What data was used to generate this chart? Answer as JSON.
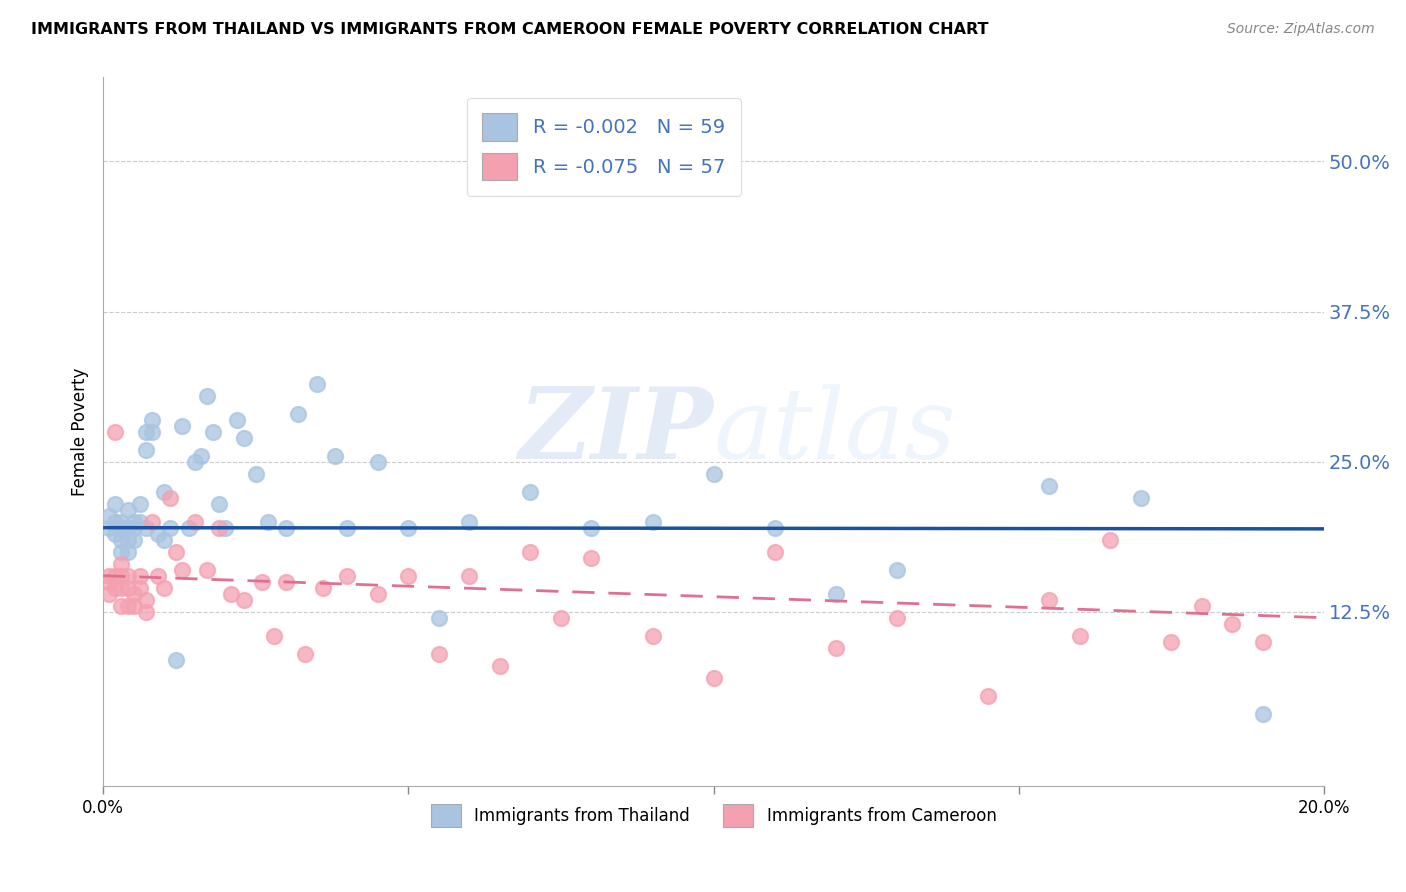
{
  "title": "IMMIGRANTS FROM THAILAND VS IMMIGRANTS FROM CAMEROON FEMALE POVERTY CORRELATION CHART",
  "source": "Source: ZipAtlas.com",
  "ylabel": "Female Poverty",
  "y_ticks": [
    0.125,
    0.25,
    0.375,
    0.5
  ],
  "y_tick_labels": [
    "12.5%",
    "25.0%",
    "37.5%",
    "50.0%"
  ],
  "x_lim": [
    0.0,
    0.2
  ],
  "y_lim": [
    -0.02,
    0.57
  ],
  "thailand_color": "#a8c4e0",
  "cameroon_color": "#f4a0b0",
  "thailand_line_color": "#1a52a0",
  "cameroon_line_color": "#e07090",
  "legend_label_thailand": "R = -0.002   N = 59",
  "legend_label_cameroon": "R = -0.075   N = 57",
  "watermark_zip": "ZIP",
  "watermark_atlas": "atlas",
  "thailand_line_y0": 0.195,
  "thailand_line_y1": 0.194,
  "cameroon_line_y0": 0.155,
  "cameroon_line_y1": 0.12,
  "thailand_x": [
    0.001,
    0.001,
    0.002,
    0.002,
    0.002,
    0.003,
    0.003,
    0.003,
    0.003,
    0.004,
    0.004,
    0.004,
    0.004,
    0.005,
    0.005,
    0.005,
    0.006,
    0.006,
    0.007,
    0.007,
    0.007,
    0.008,
    0.008,
    0.009,
    0.01,
    0.01,
    0.011,
    0.012,
    0.013,
    0.014,
    0.015,
    0.016,
    0.017,
    0.018,
    0.019,
    0.02,
    0.022,
    0.023,
    0.025,
    0.027,
    0.03,
    0.032,
    0.035,
    0.038,
    0.04,
    0.045,
    0.05,
    0.055,
    0.06,
    0.07,
    0.08,
    0.09,
    0.1,
    0.11,
    0.12,
    0.13,
    0.155,
    0.17,
    0.19
  ],
  "thailand_y": [
    0.195,
    0.205,
    0.19,
    0.2,
    0.215,
    0.2,
    0.195,
    0.185,
    0.175,
    0.21,
    0.195,
    0.185,
    0.175,
    0.2,
    0.195,
    0.185,
    0.215,
    0.2,
    0.275,
    0.26,
    0.195,
    0.285,
    0.275,
    0.19,
    0.225,
    0.185,
    0.195,
    0.085,
    0.28,
    0.195,
    0.25,
    0.255,
    0.305,
    0.275,
    0.215,
    0.195,
    0.285,
    0.27,
    0.24,
    0.2,
    0.195,
    0.29,
    0.315,
    0.255,
    0.195,
    0.25,
    0.195,
    0.12,
    0.2,
    0.225,
    0.195,
    0.2,
    0.24,
    0.195,
    0.14,
    0.16,
    0.23,
    0.22,
    0.04
  ],
  "cameroon_x": [
    0.001,
    0.001,
    0.001,
    0.002,
    0.002,
    0.002,
    0.003,
    0.003,
    0.003,
    0.003,
    0.004,
    0.004,
    0.004,
    0.005,
    0.005,
    0.006,
    0.006,
    0.007,
    0.007,
    0.008,
    0.009,
    0.01,
    0.011,
    0.012,
    0.013,
    0.015,
    0.017,
    0.019,
    0.021,
    0.023,
    0.026,
    0.028,
    0.03,
    0.033,
    0.036,
    0.04,
    0.045,
    0.05,
    0.055,
    0.06,
    0.065,
    0.07,
    0.075,
    0.08,
    0.09,
    0.1,
    0.11,
    0.12,
    0.13,
    0.145,
    0.155,
    0.16,
    0.165,
    0.175,
    0.18,
    0.185,
    0.19
  ],
  "cameroon_y": [
    0.155,
    0.15,
    0.14,
    0.275,
    0.155,
    0.145,
    0.165,
    0.155,
    0.145,
    0.13,
    0.155,
    0.145,
    0.13,
    0.14,
    0.13,
    0.155,
    0.145,
    0.135,
    0.125,
    0.2,
    0.155,
    0.145,
    0.22,
    0.175,
    0.16,
    0.2,
    0.16,
    0.195,
    0.14,
    0.135,
    0.15,
    0.105,
    0.15,
    0.09,
    0.145,
    0.155,
    0.14,
    0.155,
    0.09,
    0.155,
    0.08,
    0.175,
    0.12,
    0.17,
    0.105,
    0.07,
    0.175,
    0.095,
    0.12,
    0.055,
    0.135,
    0.105,
    0.185,
    0.1,
    0.13,
    0.115,
    0.1
  ]
}
